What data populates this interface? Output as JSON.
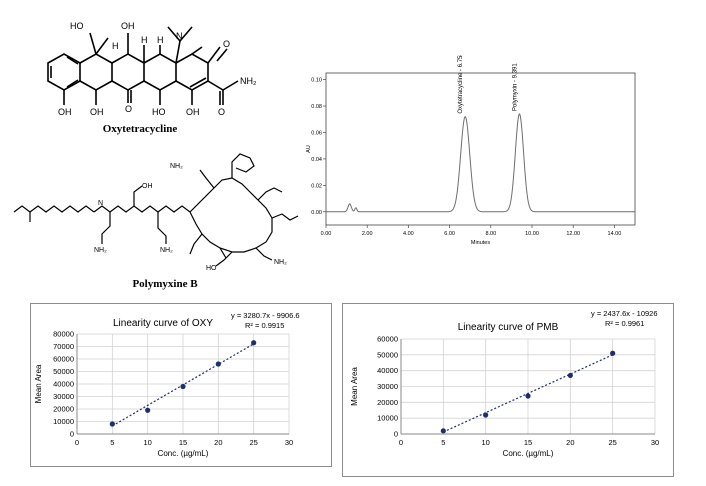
{
  "molecules": {
    "oxy_label": "Oxytetracycline",
    "pmb_label": "Polymyxine B",
    "oxy_atoms": {
      "ho_top_left": "HO",
      "oh_top_mid": "OH",
      "h1": "H",
      "h2": "H",
      "h3": "H",
      "n_dimethyl": "N",
      "o_right": "O",
      "nh2": "NH₂",
      "oh_bottom_left": "OH",
      "oh_bottom_mid": "OH",
      "o_bottom": "O",
      "ho_bottom": "HO",
      "oh_bottom_right": "OH",
      "o_amide": "O"
    },
    "pmb_atoms": {
      "nh2_1": "NH₂",
      "nh2_2": "NH₂",
      "nh2_3": "NH₂",
      "nh2_4": "NH₂",
      "oh_1": "OH",
      "ho_1": "HO",
      "n_labels": "N"
    }
  },
  "chart_data": [
    {
      "type": "line",
      "name": "chromatogram",
      "ylabel": "AU",
      "xlabel": "Minutes",
      "xlim": [
        0,
        15
      ],
      "ylim": [
        -0.01,
        0.105
      ],
      "xticks": [
        "0.00",
        "2.00",
        "4.00",
        "6.00",
        "8.00",
        "10.00",
        "12.00",
        "14.00"
      ],
      "xtick_values": [
        0,
        2,
        4,
        6,
        8,
        10,
        12,
        14
      ],
      "yticks": [
        "0.00",
        "0.02",
        "0.04",
        "0.06",
        "0.08",
        "0.10"
      ],
      "ytick_values": [
        0,
        0.02,
        0.04,
        0.06,
        0.08,
        0.1
      ],
      "peaks": [
        {
          "label": "Oxytetracycline - 6.758",
          "rt": 6.758,
          "height": 0.072,
          "width": 0.22
        },
        {
          "label": "Polymyxin - 9.391",
          "rt": 9.391,
          "height": 0.074,
          "width": 0.2
        }
      ],
      "noise": [
        {
          "rt": 1.15,
          "height": 0.006,
          "width": 0.08
        },
        {
          "rt": 1.45,
          "height": 0.003,
          "width": 0.05
        }
      ]
    },
    {
      "type": "scatter",
      "name": "oxy",
      "title": "Linearity  curve  of OXY",
      "equation": "y = 3280.7x - 9906.6",
      "r2": "R² = 0.9915",
      "xlabel": "Conc. (µg/mL)",
      "ylabel": "Mean Area",
      "xlim": [
        0,
        30
      ],
      "ylim": [
        0,
        80000
      ],
      "xticks": [
        "0",
        "5",
        "10",
        "15",
        "20",
        "25",
        "30"
      ],
      "xtick_values": [
        0,
        5,
        10,
        15,
        20,
        25,
        30
      ],
      "yticks": [
        "0",
        "10000",
        "20000",
        "30000",
        "40000",
        "50000",
        "60000",
        "70000",
        "80000"
      ],
      "ytick_values": [
        0,
        10000,
        20000,
        30000,
        40000,
        50000,
        60000,
        70000,
        80000
      ],
      "x": [
        5,
        10,
        15,
        20,
        25
      ],
      "y": [
        8000,
        19000,
        38000,
        56000,
        73000
      ],
      "trend": {
        "slope": 3280.7,
        "intercept": -9906.6
      },
      "grid": true
    },
    {
      "type": "scatter",
      "name": "pmb",
      "title": "Linearity  curve  of PMB",
      "equation": "y = 2437.6x - 10926",
      "r2": "R² = 0.9961",
      "xlabel": "Conc. (µg/mL)",
      "ylabel": "Mean Area",
      "xlim": [
        0,
        30
      ],
      "ylim": [
        0,
        60000
      ],
      "xticks": [
        "0",
        "5",
        "10",
        "15",
        "20",
        "25",
        "30"
      ],
      "xtick_values": [
        0,
        5,
        10,
        15,
        20,
        25,
        30
      ],
      "yticks": [
        "0",
        "10000",
        "20000",
        "30000",
        "40000",
        "50000",
        "60000"
      ],
      "ytick_values": [
        0,
        10000,
        20000,
        30000,
        40000,
        50000,
        60000
      ],
      "x": [
        5,
        10,
        15,
        20,
        25
      ],
      "y": [
        2000,
        12000,
        24000,
        37000,
        51000
      ],
      "trend": {
        "slope": 2437.6,
        "intercept": -10926
      },
      "grid": true
    }
  ]
}
